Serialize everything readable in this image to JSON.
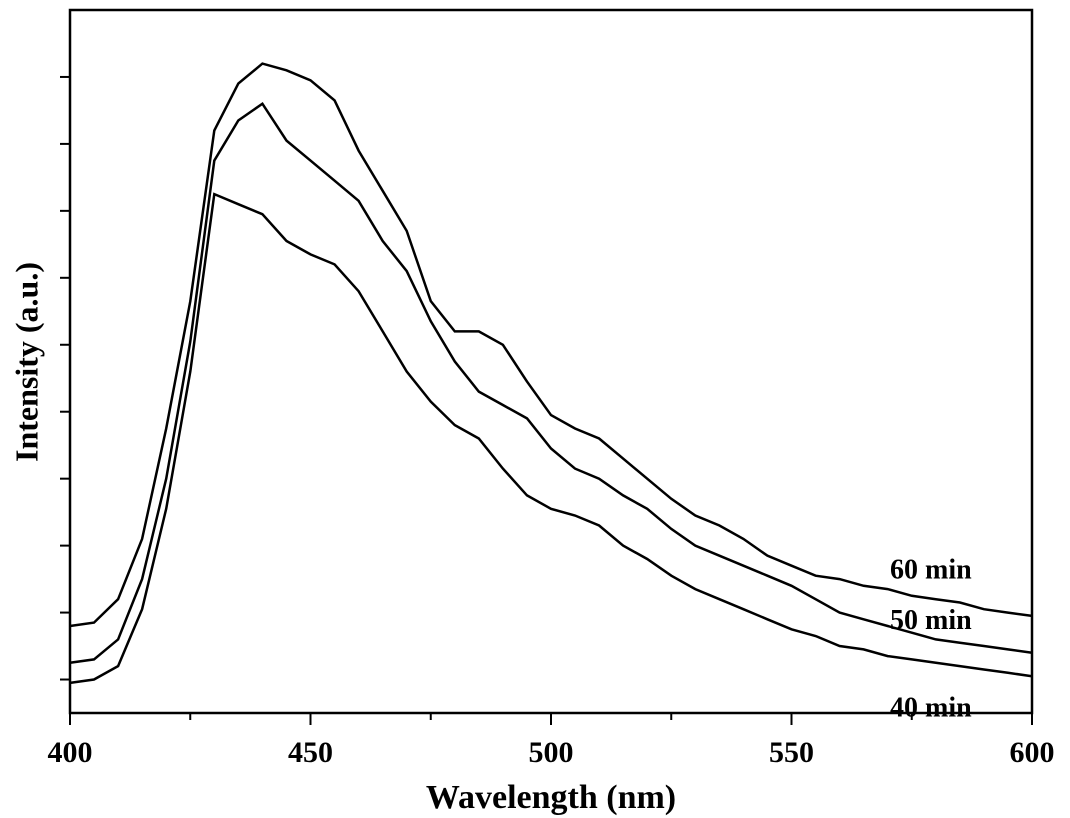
{
  "chart_data": {
    "type": "line",
    "x_label": "Wavelength (nm)",
    "y_label": "Intensity (a.u.)",
    "x": [
      400,
      405,
      410,
      415,
      420,
      425,
      430,
      435,
      440,
      445,
      450,
      455,
      460,
      465,
      470,
      475,
      480,
      485,
      490,
      495,
      500,
      505,
      510,
      515,
      520,
      525,
      530,
      535,
      540,
      545,
      550,
      555,
      560,
      565,
      570,
      575,
      580,
      585,
      590,
      595,
      600
    ],
    "series": [
      {
        "name": "60 min",
        "color": "#000000",
        "values": [
          2.6,
          2.7,
          3.4,
          5.2,
          8.5,
          12.3,
          17.4,
          18.8,
          19.4,
          19.2,
          18.9,
          18.3,
          16.8,
          15.6,
          14.4,
          12.3,
          11.4,
          11.4,
          11.0,
          9.9,
          8.9,
          8.5,
          8.2,
          7.6,
          7.0,
          6.4,
          5.9,
          5.6,
          5.2,
          4.7,
          4.4,
          4.1,
          4.0,
          3.8,
          3.7,
          3.5,
          3.4,
          3.3,
          3.1,
          3.0,
          2.9
        ]
      },
      {
        "name": "50 min",
        "color": "#000000",
        "values": [
          1.5,
          1.6,
          2.2,
          4.0,
          7.0,
          11.1,
          16.5,
          17.7,
          18.2,
          17.1,
          16.5,
          15.9,
          15.3,
          14.1,
          13.2,
          11.7,
          10.5,
          9.6,
          9.2,
          8.8,
          7.9,
          7.3,
          7.0,
          6.5,
          6.1,
          5.5,
          5.0,
          4.7,
          4.4,
          4.1,
          3.8,
          3.4,
          3.0,
          2.8,
          2.6,
          2.4,
          2.2,
          2.1,
          2.0,
          1.9,
          1.8
        ]
      },
      {
        "name": "40 min",
        "color": "#000000",
        "values": [
          0.9,
          1.0,
          1.4,
          3.1,
          6.1,
          10.2,
          15.5,
          15.2,
          14.9,
          14.1,
          13.7,
          13.4,
          12.6,
          11.4,
          10.2,
          9.3,
          8.6,
          8.2,
          7.3,
          6.5,
          6.1,
          5.9,
          5.6,
          5.0,
          4.6,
          4.1,
          3.7,
          3.4,
          3.1,
          2.8,
          2.5,
          2.3,
          2.0,
          1.9,
          1.7,
          1.6,
          1.5,
          1.4,
          1.3,
          1.2,
          1.1
        ]
      }
    ],
    "xlim": [
      400,
      600
    ],
    "xticks": [
      400,
      450,
      500,
      550,
      600
    ],
    "ylim": [
      0,
      21
    ],
    "yticks": [
      1,
      3,
      5,
      7,
      9,
      11,
      13,
      15,
      17,
      19
    ]
  }
}
